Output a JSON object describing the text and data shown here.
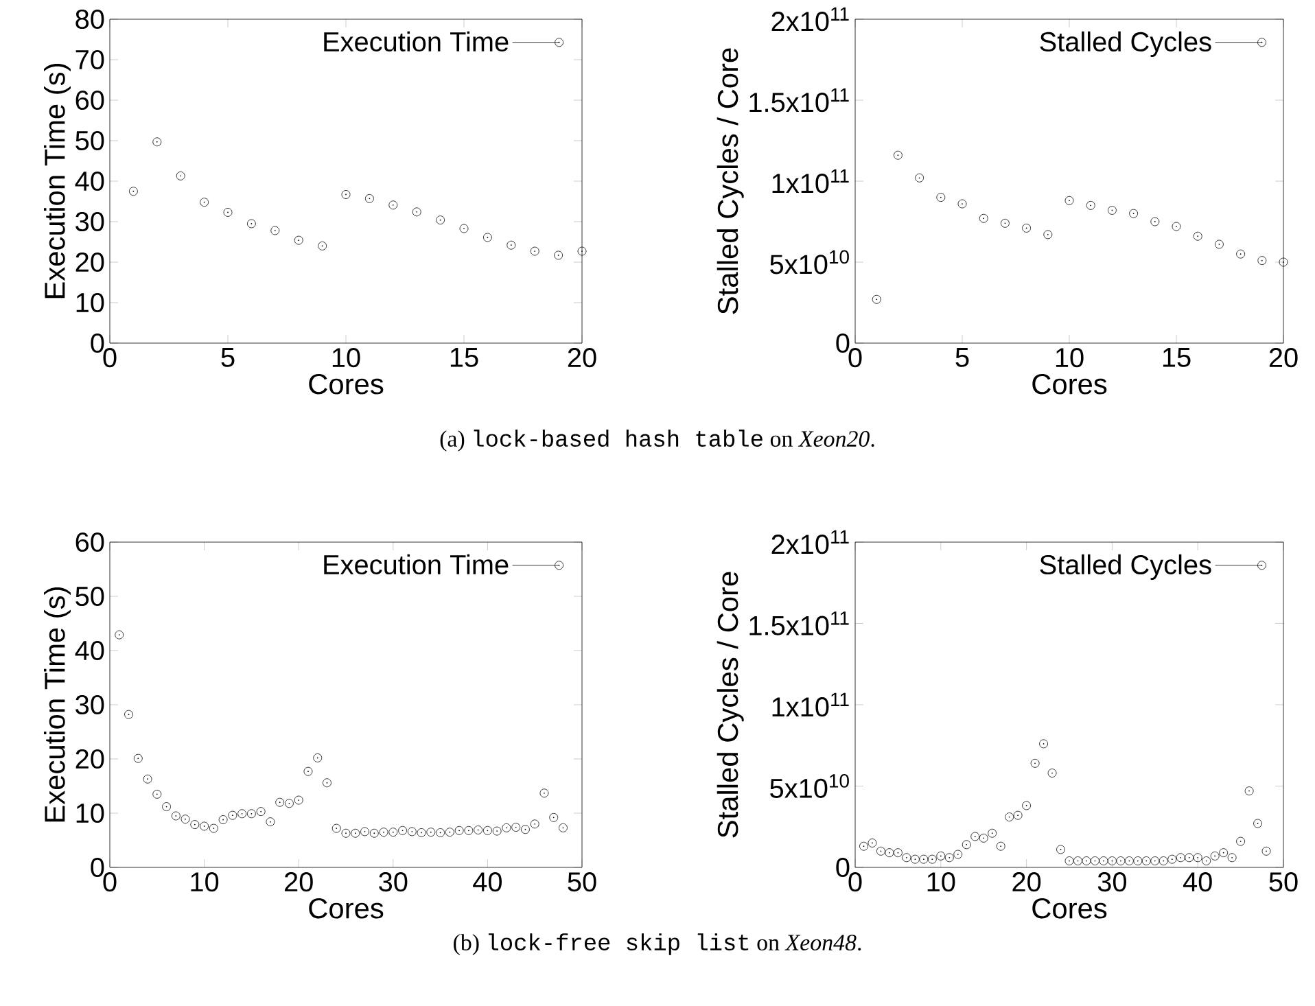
{
  "chart_data": [
    {
      "type": "scatter",
      "xlabel": "Cores",
      "ylabel": "Execution Time (s)",
      "legend": "top right",
      "marker": "circle",
      "x": [
        1,
        2,
        3,
        4,
        5,
        6,
        7,
        8,
        9,
        10,
        11,
        12,
        13,
        14,
        15,
        16,
        17,
        18,
        19,
        20
      ],
      "series": [
        {
          "name": "Execution Time",
          "color": "#000000",
          "values": [
            37.5,
            49.7,
            41.3,
            34.8,
            32.3,
            29.5,
            27.8,
            25.4,
            24,
            36.7,
            35.7,
            34.1,
            32.4,
            30.4,
            28.3,
            26.1,
            24.2,
            22.7,
            21.7,
            22.7
          ]
        }
      ],
      "xlim": [
        0,
        20
      ],
      "ylim": [
        0,
        80
      ],
      "xticks": [
        0,
        5,
        10,
        15,
        20
      ],
      "yticks": [
        0,
        10,
        20,
        30,
        40,
        50,
        60,
        70,
        80
      ],
      "annotations": [
        "(a)",
        "lock-based hash table",
        "on *Xeon20*."
      ]
    },
    {
      "type": "scatter",
      "xlabel": "Cores",
      "ylabel": "Stalled Cycles / Core",
      "legend": "top right",
      "marker": "circle",
      "x": [
        1,
        2,
        3,
        4,
        5,
        6,
        7,
        8,
        9,
        10,
        11,
        12,
        13,
        14,
        15,
        16,
        17,
        18,
        19,
        20
      ],
      "series": [
        {
          "name": "Stalled Cycles",
          "color": "#000000",
          "values": [
            27000000000.0,
            116000000000.0,
            102000000000.0,
            90000000000.0,
            86000000000.0,
            77000000000.0,
            74000000000.0,
            71000000000.0,
            67000000000.0,
            88000000000.0,
            85000000000.0,
            82000000000.0,
            80000000000.0,
            75000000000.0,
            72000000000.0,
            66000000000.0,
            61000000000.0,
            55000000000.0,
            51000000000.0,
            50000000000.0
          ]
        }
      ],
      "xlim": [
        0,
        20
      ],
      "ylim": [
        0,
        200000000000.0
      ],
      "xticks": [
        0,
        5,
        10,
        15,
        20
      ],
      "yticks": [
        0,
        {
          "value": 50000000000.0,
          "label": "5x10$^{10}$"
        },
        {
          "value": 100000000000.0,
          "label": "1x10$^{11}$"
        },
        {
          "value": 150000000000.0,
          "label": "1.5x10$^{11}$"
        },
        {
          "value": 200000000000.0,
          "label": "2x10$^{11}$"
        }
      ]
    },
    {
      "type": "scatter",
      "xlabel": "Cores",
      "ylabel": "Execution Time (s)",
      "legend": "top right",
      "marker": "circle",
      "x": [
        1,
        2,
        3,
        4,
        5,
        6,
        7,
        8,
        9,
        10,
        11,
        12,
        13,
        14,
        15,
        16,
        17,
        18,
        19,
        20,
        21,
        22,
        23,
        24,
        25,
        26,
        27,
        28,
        29,
        30,
        31,
        32,
        33,
        34,
        35,
        36,
        37,
        38,
        39,
        40,
        41,
        42,
        43,
        44,
        45,
        46,
        47,
        48
      ],
      "series": [
        {
          "name": "Execution Time",
          "color": "#000000",
          "values": [
            42.9,
            28.2,
            20.1,
            16.3,
            13.5,
            11.2,
            9.5,
            8.9,
            7.9,
            7.6,
            7.2,
            8.8,
            9.6,
            9.9,
            9.9,
            10.3,
            8.4,
            12.0,
            11.8,
            12.4,
            17.7,
            20.2,
            15.6,
            7.2,
            6.3,
            6.3,
            6.6,
            6.3,
            6.5,
            6.5,
            6.8,
            6.6,
            6.4,
            6.5,
            6.4,
            6.5,
            6.8,
            6.8,
            6.9,
            6.8,
            6.7,
            7.3,
            7.4,
            7.0,
            8.0,
            13.7,
            9.2,
            7.3
          ]
        }
      ],
      "xlim": [
        0,
        50
      ],
      "ylim": [
        0,
        60
      ],
      "xticks": [
        0,
        10,
        20,
        30,
        40,
        50
      ],
      "yticks": [
        0,
        10,
        20,
        30,
        40,
        50,
        60
      ],
      "annotations": [
        "(b)",
        "lock-free skip list",
        "on *Xeon48*."
      ]
    },
    {
      "type": "scatter",
      "xlabel": "Cores",
      "ylabel": "Stalled Cycles / Core",
      "legend": "top right",
      "marker": "circle",
      "x": [
        1,
        2,
        3,
        4,
        5,
        6,
        7,
        8,
        9,
        10,
        11,
        12,
        13,
        14,
        15,
        16,
        17,
        18,
        19,
        20,
        21,
        22,
        23,
        24,
        25,
        26,
        27,
        28,
        29,
        30,
        31,
        32,
        33,
        34,
        35,
        36,
        37,
        38,
        39,
        40,
        41,
        42,
        43,
        44,
        45,
        46,
        47,
        48
      ],
      "series": [
        {
          "name": "Stalled Cycles",
          "color": "#000000",
          "values": [
            13000000000.0,
            15000000000.0,
            10000000000.0,
            9000000000.0,
            9000000000.0,
            6000000000.0,
            5000000000.0,
            5000000000.0,
            5000000000.0,
            7000000000.0,
            6000000000.0,
            8000000000.0,
            14000000000.0,
            19000000000.0,
            18000000000.0,
            21000000000.0,
            13000000000.0,
            31000000000.0,
            32000000000.0,
            38000000000.0,
            64000000000.0,
            76000000000.0,
            58000000000.0,
            11000000000.0,
            4000000000.0,
            4000000000.0,
            4000000000.0,
            4000000000.0,
            4000000000.0,
            4000000000.0,
            4000000000.0,
            4000000000.0,
            4000000000.0,
            4000000000.0,
            4000000000.0,
            4000000000.0,
            5000000000.0,
            6000000000.0,
            6000000000.0,
            6000000000.0,
            4000000000.0,
            7000000000.0,
            9000000000.0,
            6000000000.0,
            16000000000.0,
            47000000000.0,
            27000000000.0,
            10000000000.0
          ]
        }
      ],
      "xlim": [
        0,
        50
      ],
      "ylim": [
        0,
        200000000000.0
      ],
      "xticks": [
        0,
        10,
        20,
        30,
        40,
        50
      ],
      "yticks": [
        0,
        {
          "value": 50000000000.0,
          "label": "5x10$^{10}$"
        },
        {
          "value": 100000000000.0,
          "label": "1x10$^{11}$"
        },
        {
          "value": 150000000000.0,
          "label": "1.5x10$^{11}$"
        },
        {
          "value": 200000000000.0,
          "label": "2x10$^{11}$"
        }
      ]
    }
  ]
}
